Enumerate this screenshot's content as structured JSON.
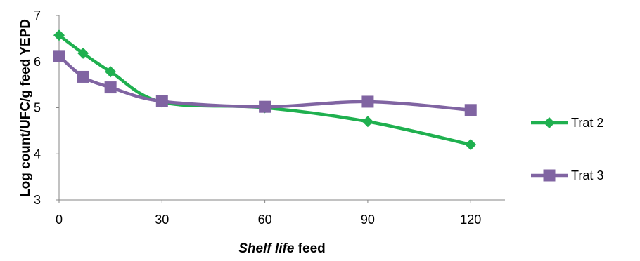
{
  "chart_data": {
    "type": "line",
    "smooth": true,
    "x": [
      0,
      7,
      15,
      30,
      60,
      90,
      120
    ],
    "series": [
      {
        "name": "Trat 2",
        "color": "#1fb04f",
        "marker": "diamond",
        "values": [
          6.57,
          6.18,
          5.78,
          5.12,
          5.0,
          4.7,
          4.2
        ]
      },
      {
        "name": "Trat 3",
        "color": "#8064a2",
        "marker": "square",
        "values": [
          6.12,
          5.67,
          5.44,
          5.14,
          5.02,
          5.13,
          4.95
        ]
      }
    ],
    "xlim": [
      0,
      130
    ],
    "ylim": [
      3,
      7
    ],
    "xticks": [
      "0",
      "30",
      "60",
      "90",
      "120"
    ],
    "yticks": [
      "3",
      "4",
      "5",
      "6",
      "7"
    ],
    "xlabel_italic": "Shelf life",
    "xlabel_rest": " feed",
    "ylabel": "Log count/UFC/g feed YEPD",
    "grid": false,
    "legend_position": "right"
  }
}
